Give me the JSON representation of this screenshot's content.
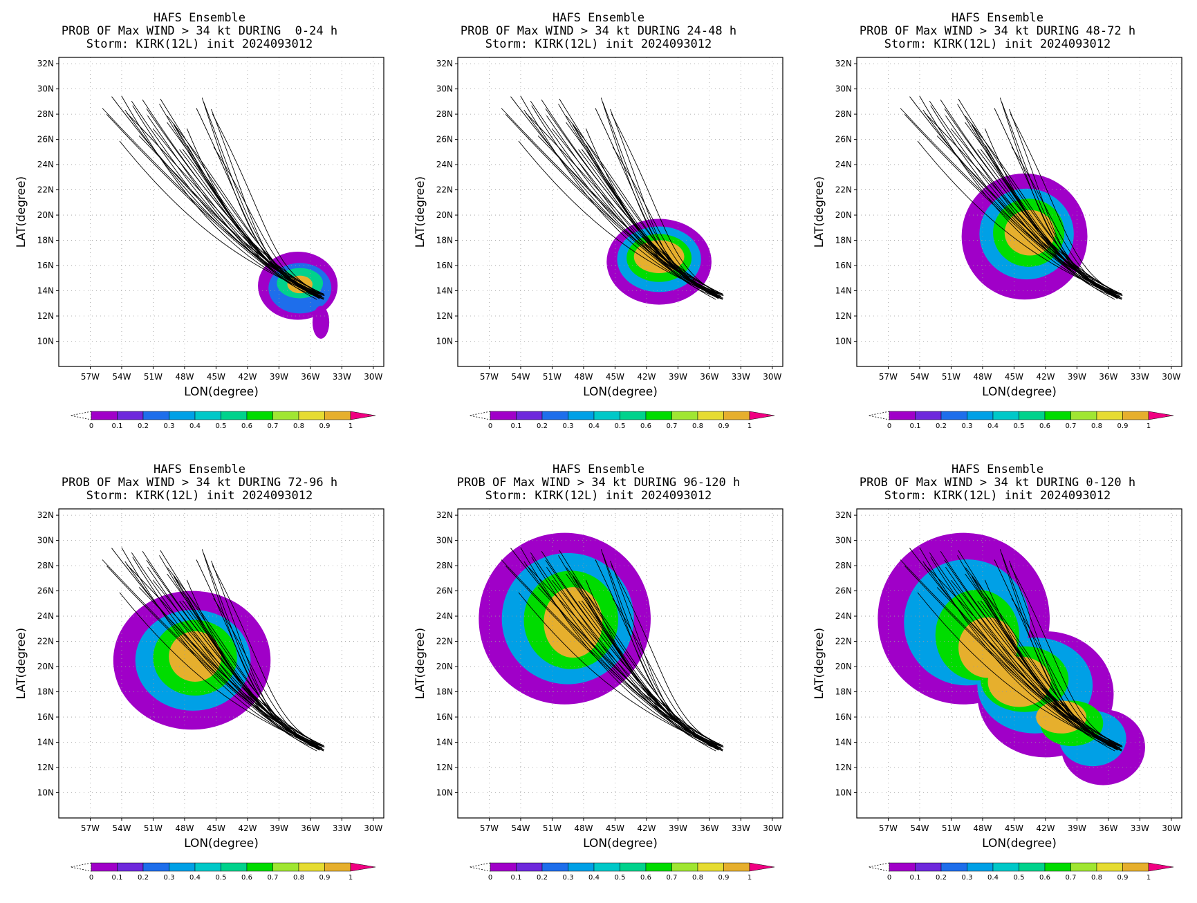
{
  "figure": {
    "colorbar": {
      "ticks": [
        "0",
        "0.1",
        "0.2",
        "0.3",
        "0.4",
        "0.5",
        "0.6",
        "0.7",
        "0.8",
        "0.9",
        "1"
      ],
      "colors": [
        "#a000c8",
        "#6e28dc",
        "#1e6eeb",
        "#00a0e6",
        "#00c8c8",
        "#00d28c",
        "#00dc00",
        "#a0e632",
        "#e6dc32",
        "#e6af2d",
        "#f08228",
        "#fa3c3c",
        "#f00082"
      ]
    }
  },
  "chart_data": [
    {
      "type": "heatmap",
      "title": "HAFS Ensemble",
      "subtitle": "PROB OF Max WIND > 34 kt DURING  0-24 h",
      "storm_line": "Storm: KIRK(12L) init 2024093012",
      "xlabel": "LON(degree)",
      "ylabel": "LAT(degree)",
      "xlim": [
        -60,
        -29
      ],
      "ylim": [
        8,
        32.5
      ],
      "x_ticks": [
        "57W",
        "54W",
        "51W",
        "48W",
        "45W",
        "42W",
        "39W",
        "36W",
        "33W",
        "30W"
      ],
      "y_ticks": [
        "10N",
        "12N",
        "14N",
        "16N",
        "18N",
        "20N",
        "22N",
        "24N",
        "26N",
        "28N",
        "30N",
        "32N"
      ],
      "grid": true,
      "probability_field": [
        {
          "lon": -37.2,
          "lat": 14.4,
          "rlon": 3.8,
          "rlat": 2.7,
          "p": 0.05
        },
        {
          "lon": -37.0,
          "lat": 14.2,
          "rlon": 3.0,
          "rlat": 2.0,
          "p": 0.25
        },
        {
          "lon": -37.0,
          "lat": 14.6,
          "rlon": 2.2,
          "rlat": 1.2,
          "p": 0.55
        },
        {
          "lon": -37.0,
          "lat": 14.5,
          "rlon": 1.2,
          "rlat": 0.7,
          "p": 0.9
        },
        {
          "lon": -35.0,
          "lat": 11.5,
          "rlon": 0.8,
          "rlat": 1.3,
          "p": 0.05
        }
      ],
      "tracks": {
        "members": 30,
        "start": [
          -35.0,
          13.6
        ],
        "end_lon_range": [
          -55.5,
          -45.5
        ],
        "end_lat_range": [
          23.3,
          29.6
        ]
      }
    },
    {
      "type": "heatmap",
      "title": "HAFS Ensemble",
      "subtitle": "PROB OF Max WIND > 34 kt DURING 24-48 h",
      "storm_line": "Storm: KIRK(12L) init 2024093012",
      "xlabel": "LON(degree)",
      "ylabel": "LAT(degree)",
      "xlim": [
        -60,
        -29
      ],
      "ylim": [
        8,
        32.5
      ],
      "x_ticks": [
        "57W",
        "54W",
        "51W",
        "48W",
        "45W",
        "42W",
        "39W",
        "36W",
        "33W",
        "30W"
      ],
      "y_ticks": [
        "10N",
        "12N",
        "14N",
        "16N",
        "18N",
        "20N",
        "22N",
        "24N",
        "26N",
        "28N",
        "30N",
        "32N"
      ],
      "grid": true,
      "probability_field": [
        {
          "lon": -40.8,
          "lat": 16.3,
          "rlon": 5.0,
          "rlat": 3.4,
          "p": 0.05
        },
        {
          "lon": -40.8,
          "lat": 16.5,
          "rlon": 4.0,
          "rlat": 2.6,
          "p": 0.3
        },
        {
          "lon": -40.8,
          "lat": 16.6,
          "rlon": 3.1,
          "rlat": 1.9,
          "p": 0.6
        },
        {
          "lon": -40.8,
          "lat": 16.7,
          "rlon": 2.4,
          "rlat": 1.3,
          "p": 0.95
        }
      ],
      "tracks": {
        "members": 30,
        "start": [
          -35.0,
          13.6
        ],
        "end_lon_range": [
          -55.5,
          -45.5
        ],
        "end_lat_range": [
          23.3,
          29.6
        ]
      }
    },
    {
      "type": "heatmap",
      "title": "HAFS Ensemble",
      "subtitle": "PROB OF Max WIND > 34 kt DURING 48-72 h",
      "storm_line": "Storm: KIRK(12L) init 2024093012",
      "xlabel": "LON(degree)",
      "ylabel": "LAT(degree)",
      "xlim": [
        -60,
        -29
      ],
      "ylim": [
        8,
        32.5
      ],
      "x_ticks": [
        "57W",
        "54W",
        "51W",
        "48W",
        "45W",
        "42W",
        "39W",
        "36W",
        "33W",
        "30W"
      ],
      "y_ticks": [
        "10N",
        "12N",
        "14N",
        "16N",
        "18N",
        "20N",
        "22N",
        "24N",
        "26N",
        "28N",
        "30N",
        "32N"
      ],
      "grid": true,
      "probability_field": [
        {
          "lon": -44.0,
          "lat": 18.3,
          "rlon": 6.0,
          "rlat": 5.0,
          "p": 0.05
        },
        {
          "lon": -43.8,
          "lat": 18.5,
          "rlon": 4.5,
          "rlat": 3.6,
          "p": 0.3
        },
        {
          "lon": -43.6,
          "lat": 18.6,
          "rlon": 3.4,
          "rlat": 2.7,
          "p": 0.6
        },
        {
          "lon": -43.5,
          "lat": 18.6,
          "rlon": 2.4,
          "rlat": 1.8,
          "p": 0.9
        }
      ],
      "tracks": {
        "members": 30,
        "start": [
          -35.0,
          13.6
        ],
        "end_lon_range": [
          -55.5,
          -45.5
        ],
        "end_lat_range": [
          23.3,
          29.6
        ]
      }
    },
    {
      "type": "heatmap",
      "title": "HAFS Ensemble",
      "subtitle": "PROB OF Max WIND > 34 kt DURING 72-96 h",
      "storm_line": "Storm: KIRK(12L) init 2024093012",
      "xlabel": "LON(degree)",
      "ylabel": "LAT(degree)",
      "xlim": [
        -60,
        -29
      ],
      "ylim": [
        8,
        32.5
      ],
      "x_ticks": [
        "57W",
        "54W",
        "51W",
        "48W",
        "45W",
        "42W",
        "39W",
        "36W",
        "33W",
        "30W"
      ],
      "y_ticks": [
        "10N",
        "12N",
        "14N",
        "16N",
        "18N",
        "20N",
        "22N",
        "24N",
        "26N",
        "28N",
        "30N",
        "32N"
      ],
      "grid": true,
      "probability_field": [
        {
          "lon": -47.3,
          "lat": 20.5,
          "rlon": 7.5,
          "rlat": 5.5,
          "p": 0.05
        },
        {
          "lon": -47.2,
          "lat": 20.5,
          "rlon": 5.5,
          "rlat": 4.0,
          "p": 0.3
        },
        {
          "lon": -47.0,
          "lat": 20.7,
          "rlon": 4.0,
          "rlat": 3.0,
          "p": 0.6
        },
        {
          "lon": -47.0,
          "lat": 20.8,
          "rlon": 2.5,
          "rlat": 2.0,
          "p": 0.9
        }
      ],
      "tracks": {
        "members": 30,
        "start": [
          -35.0,
          13.6
        ],
        "end_lon_range": [
          -55.5,
          -45.5
        ],
        "end_lat_range": [
          23.3,
          29.6
        ]
      }
    },
    {
      "type": "heatmap",
      "title": "HAFS Ensemble",
      "subtitle": "PROB OF Max WIND > 34 kt DURING 96-120 h",
      "storm_line": "Storm: KIRK(12L) init 2024093012",
      "xlabel": "LON(degree)",
      "ylabel": "LAT(degree)",
      "xlim": [
        -60,
        -29
      ],
      "ylim": [
        8,
        32.5
      ],
      "x_ticks": [
        "57W",
        "54W",
        "51W",
        "48W",
        "45W",
        "42W",
        "39W",
        "36W",
        "33W",
        "30W"
      ],
      "y_ticks": [
        "10N",
        "12N",
        "14N",
        "16N",
        "18N",
        "20N",
        "22N",
        "24N",
        "26N",
        "28N",
        "30N",
        "32N"
      ],
      "grid": true,
      "probability_field": [
        {
          "lon": -49.8,
          "lat": 23.8,
          "rlon": 8.2,
          "rlat": 6.8,
          "p": 0.05
        },
        {
          "lon": -49.5,
          "lat": 23.8,
          "rlon": 6.3,
          "rlat": 5.2,
          "p": 0.3
        },
        {
          "lon": -49.2,
          "lat": 23.7,
          "rlon": 4.5,
          "rlat": 3.9,
          "p": 0.6
        },
        {
          "lon": -49.0,
          "lat": 23.5,
          "rlon": 2.8,
          "rlat": 2.8,
          "p": 0.9
        }
      ],
      "tracks": {
        "members": 30,
        "start": [
          -35.0,
          13.6
        ],
        "end_lon_range": [
          -55.5,
          -45.5
        ],
        "end_lat_range": [
          23.3,
          29.6
        ]
      }
    },
    {
      "type": "heatmap",
      "title": "HAFS Ensemble",
      "subtitle": "PROB OF Max WIND > 34 kt DURING 0-120 h",
      "storm_line": "Storm: KIRK(12L) init 2024093012",
      "xlabel": "LON(degree)",
      "ylabel": "LAT(degree)",
      "xlim": [
        -60,
        -29
      ],
      "ylim": [
        8,
        32.5
      ],
      "x_ticks": [
        "57W",
        "54W",
        "51W",
        "48W",
        "45W",
        "42W",
        "39W",
        "36W",
        "33W",
        "30W"
      ],
      "y_ticks": [
        "10N",
        "12N",
        "14N",
        "16N",
        "18N",
        "20N",
        "22N",
        "24N",
        "26N",
        "28N",
        "30N",
        "32N"
      ],
      "grid": true,
      "probability_field": [
        {
          "lon": -49.8,
          "lat": 23.8,
          "rlon": 8.2,
          "rlat": 6.8,
          "p": 0.05
        },
        {
          "lon": -36.5,
          "lat": 13.6,
          "rlon": 4.0,
          "rlat": 3.0,
          "p": 0.05
        },
        {
          "lon": -42.0,
          "lat": 17.8,
          "rlon": 6.5,
          "rlat": 5.0,
          "p": 0.05
        },
        {
          "lon": -49.5,
          "lat": 23.5,
          "rlon": 6.0,
          "rlat": 5.0,
          "p": 0.3
        },
        {
          "lon": -37.5,
          "lat": 14.3,
          "rlon": 3.2,
          "rlat": 2.2,
          "p": 0.3
        },
        {
          "lon": -43.0,
          "lat": 18.5,
          "rlon": 5.5,
          "rlat": 3.8,
          "p": 0.3
        },
        {
          "lon": -48.5,
          "lat": 22.5,
          "rlon": 4.0,
          "rlat": 3.6,
          "p": 0.6
        },
        {
          "lon": -39.5,
          "lat": 15.5,
          "rlon": 3.0,
          "rlat": 1.8,
          "p": 0.6
        },
        {
          "lon": -44.0,
          "lat": 19.0,
          "rlon": 4.2,
          "rlat": 2.6,
          "p": 0.6
        },
        {
          "lon": -47.5,
          "lat": 21.5,
          "rlon": 2.8,
          "rlat": 2.4,
          "p": 0.9
        },
        {
          "lon": -44.5,
          "lat": 18.8,
          "rlon": 3.0,
          "rlat": 2.0,
          "p": 0.9
        },
        {
          "lon": -40.5,
          "lat": 16.0,
          "rlon": 2.4,
          "rlat": 1.3,
          "p": 0.9
        }
      ],
      "tracks": {
        "members": 30,
        "start": [
          -35.0,
          13.6
        ],
        "end_lon_range": [
          -55.5,
          -45.5
        ],
        "end_lat_range": [
          23.3,
          29.6
        ]
      }
    }
  ]
}
